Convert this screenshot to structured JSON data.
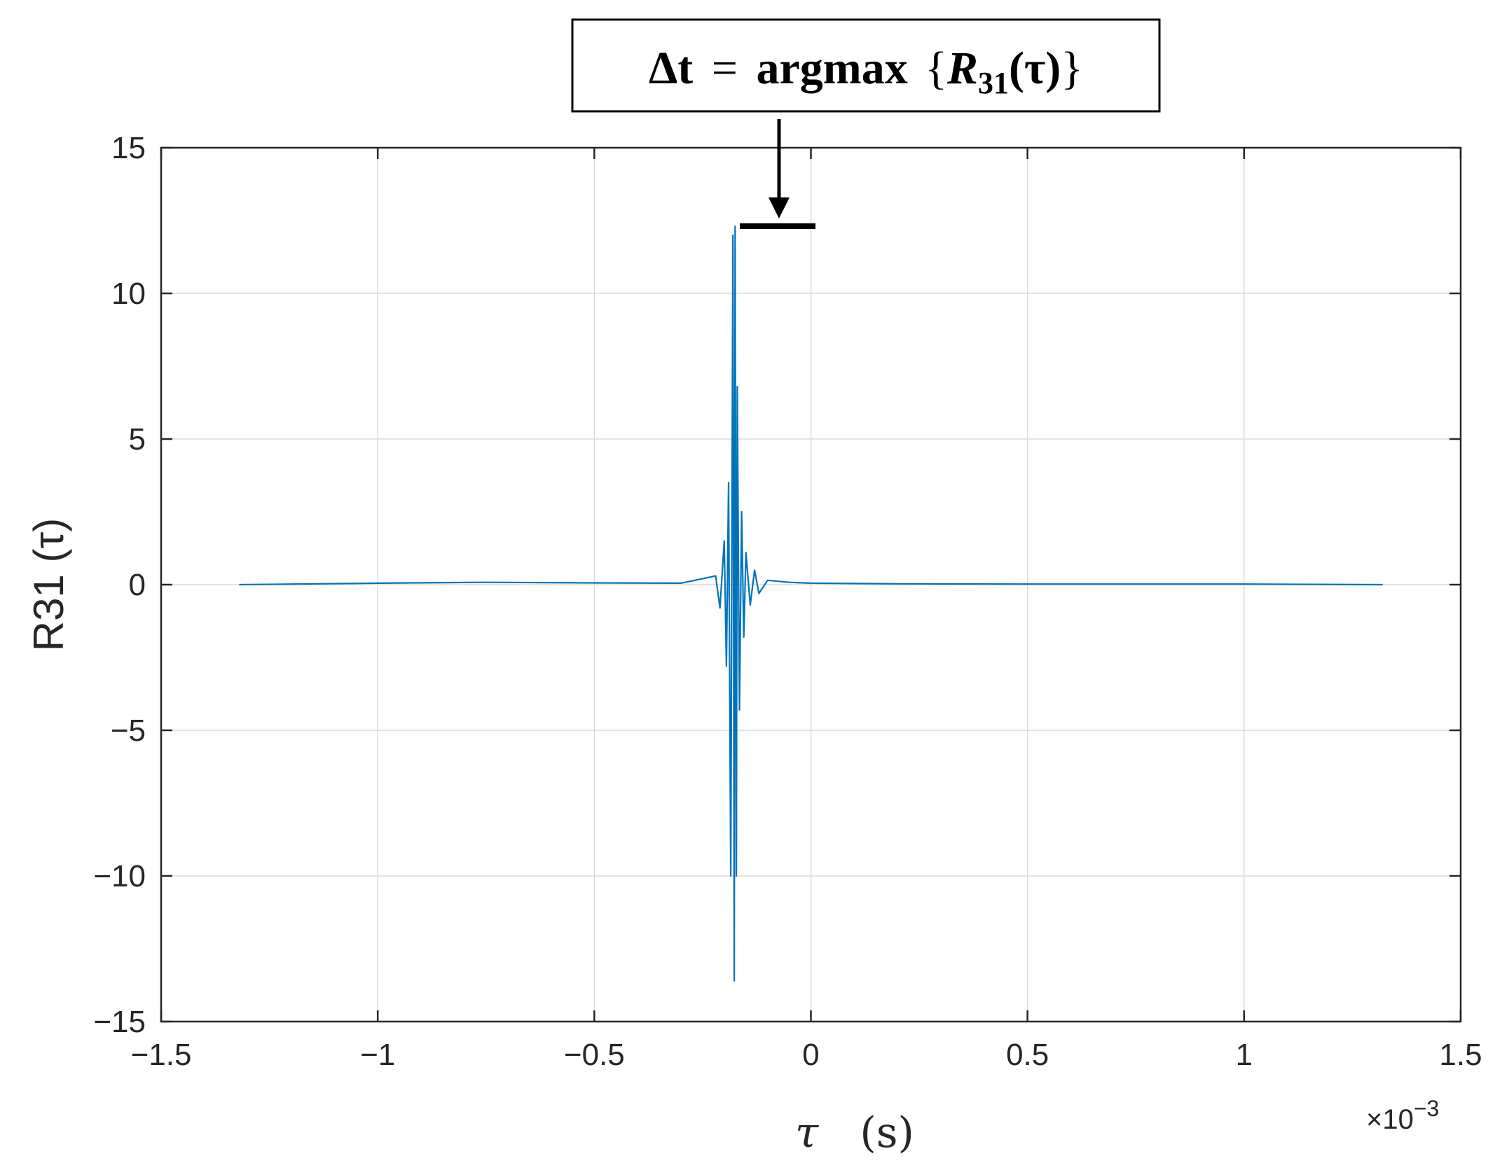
{
  "chart_data": {
    "type": "line",
    "title": "",
    "xlabel_symbol": "τ",
    "xlabel_unit": "(s)",
    "ylabel": "R31 (τ)",
    "x_exponent_base": "×10",
    "x_exponent_power": "−3",
    "xlim": [
      -1.5,
      1.5
    ],
    "ylim": [
      -15,
      15
    ],
    "x_ticks": [
      -1.5,
      -1,
      -0.5,
      0,
      0.5,
      1,
      1.5
    ],
    "x_tick_labels": [
      "−1.5",
      "−1",
      "−0.5",
      "0",
      "0.5",
      "1",
      "1.5"
    ],
    "y_ticks": [
      15,
      10,
      5,
      0,
      -5,
      -10,
      -15
    ],
    "y_tick_labels": [
      "15",
      "10",
      "5",
      "0",
      "−5",
      "−10",
      "−15"
    ],
    "grid": true,
    "x_range_data": [
      -1.32,
      1.32
    ],
    "peak": {
      "x": -0.175,
      "y": 12.3
    },
    "trough": {
      "x": -0.18,
      "y": -13.6
    },
    "series": [
      {
        "color": "#0072BD",
        "x": [
          -1.32,
          -1.0,
          -0.75,
          -0.5,
          -0.3,
          -0.22,
          -0.21,
          -0.2,
          -0.195,
          -0.19,
          -0.185,
          -0.18,
          -0.177,
          -0.175,
          -0.172,
          -0.17,
          -0.165,
          -0.16,
          -0.155,
          -0.15,
          -0.14,
          -0.13,
          -0.12,
          -0.1,
          -0.05,
          0.0,
          0.2,
          0.5,
          0.8,
          1.0,
          1.32
        ],
        "y": [
          0,
          0.05,
          0.08,
          0.06,
          0.05,
          0.3,
          -0.8,
          1.5,
          -2.8,
          3.5,
          -10.0,
          12.0,
          -13.6,
          12.3,
          -10.0,
          6.8,
          -4.3,
          2.5,
          -1.8,
          1.1,
          -0.7,
          0.5,
          -0.3,
          0.15,
          0.08,
          0.05,
          0.03,
          0.02,
          0.02,
          0.02,
          0
        ]
      }
    ],
    "annotation": {
      "lhs": "Δt",
      "eq": "=",
      "op": "argmax",
      "open": "{",
      "var": "R",
      "sub": "31",
      "arg": "(τ)",
      "close": "}"
    }
  }
}
